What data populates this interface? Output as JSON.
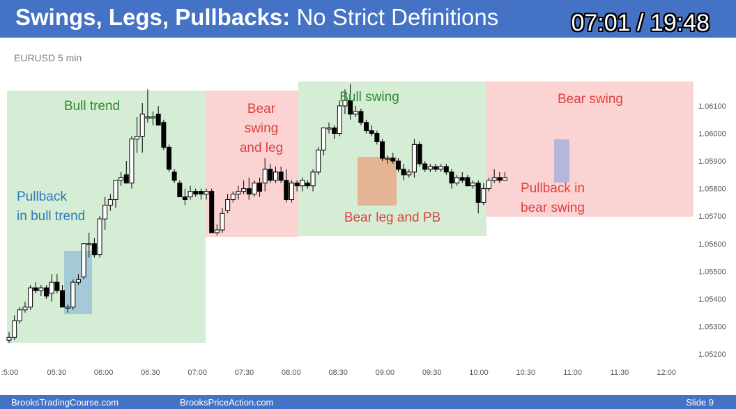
{
  "header": {
    "title_bold": "Swings, Legs, Pullbacks:",
    "title_rest": "No Strict Definitions",
    "timer": "07:01 / 19:48"
  },
  "footer": {
    "left": "BrooksTradingCourse.com",
    "center": "BrooksPriceAction.com",
    "slide": "Slide 9"
  },
  "colors": {
    "header_bg": "#4472c4",
    "bull_zone": "#d4edd4",
    "bear_zone": "#fbd3d3",
    "pullback_bull": "#9cc3d7",
    "pullback_bear": "#a8b0dc",
    "bear_leg_pb": "#e8a98a",
    "bull_text": "#2e8b2e",
    "bear_text": "#e04040",
    "pullback_bull_text": "#2b7bbd"
  },
  "chart_data": {
    "type": "candlestick",
    "title": "EURUSD 5 min",
    "yticks": [
      "1.05200",
      "1.05300",
      "1.05400",
      "1.05500",
      "1.05600",
      "1.05700",
      "1.05800",
      "1.05900",
      "1.06000",
      "1.06100"
    ],
    "xticks": [
      ":5:00",
      "05:30",
      "06:00",
      "06:30",
      "07:00",
      "07:30",
      "08:00",
      "08:30",
      "09:00",
      "09:30",
      "10:00",
      "10:30",
      "11:00",
      "11:30",
      "12:00"
    ],
    "ylim": [
      1.0518,
      1.0622
    ],
    "annotations": [
      {
        "text": "Bull trend",
        "lines": [
          "Bull trend"
        ],
        "style": "bull"
      },
      {
        "text": "Bear swing and leg",
        "lines": [
          "Bear",
          "swing",
          "and leg"
        ],
        "style": "bear"
      },
      {
        "text": "Bull swing",
        "lines": [
          "Bull swing"
        ],
        "style": "bull"
      },
      {
        "text": "Bear swing",
        "lines": [
          "Bear swing"
        ],
        "style": "bear"
      },
      {
        "text": "Pullback in bull trend",
        "lines": [
          "Pullback",
          "in bull trend"
        ],
        "style": "pullback"
      },
      {
        "text": "Bear leg and PB",
        "lines": [
          "Bear leg and PB"
        ],
        "style": "bear"
      },
      {
        "text": "Pullback in bear swing",
        "lines": [
          "Pullback in",
          "bear swing"
        ],
        "style": "bear"
      }
    ],
    "candles": [
      {
        "o": 1.0525,
        "h": 1.0528,
        "l": 1.0524,
        "c": 1.0526
      },
      {
        "o": 1.0526,
        "h": 1.0534,
        "l": 1.0525,
        "c": 1.0532
      },
      {
        "o": 1.0532,
        "h": 1.0537,
        "l": 1.0531,
        "c": 1.0536
      },
      {
        "o": 1.0536,
        "h": 1.0539,
        "l": 1.0535,
        "c": 1.0537
      },
      {
        "o": 1.0537,
        "h": 1.0545,
        "l": 1.0536,
        "c": 1.0544
      },
      {
        "o": 1.0544,
        "h": 1.0546,
        "l": 1.0542,
        "c": 1.0543
      },
      {
        "o": 1.0543,
        "h": 1.0545,
        "l": 1.0541,
        "c": 1.0544
      },
      {
        "o": 1.0544,
        "h": 1.0545,
        "l": 1.054,
        "c": 1.0541
      },
      {
        "o": 1.0542,
        "h": 1.0549,
        "l": 1.0539,
        "c": 1.0546
      },
      {
        "o": 1.0546,
        "h": 1.0549,
        "l": 1.0542,
        "c": 1.0543
      },
      {
        "o": 1.0543,
        "h": 1.0545,
        "l": 1.0537,
        "c": 1.0537
      },
      {
        "o": 1.0537,
        "h": 1.0538,
        "l": 1.0535,
        "c": 1.0537
      },
      {
        "o": 1.0537,
        "h": 1.0547,
        "l": 1.0536,
        "c": 1.0546
      },
      {
        "o": 1.0546,
        "h": 1.0549,
        "l": 1.0545,
        "c": 1.0547
      },
      {
        "o": 1.0548,
        "h": 1.056,
        "l": 1.0547,
        "c": 1.056
      },
      {
        "o": 1.056,
        "h": 1.0564,
        "l": 1.0555,
        "c": 1.056
      },
      {
        "o": 1.056,
        "h": 1.0562,
        "l": 1.0555,
        "c": 1.0556
      },
      {
        "o": 1.0556,
        "h": 1.057,
        "l": 1.0555,
        "c": 1.0569
      },
      {
        "o": 1.0569,
        "h": 1.0577,
        "l": 1.0565,
        "c": 1.0574
      },
      {
        "o": 1.0574,
        "h": 1.0578,
        "l": 1.0572,
        "c": 1.0576
      },
      {
        "o": 1.0576,
        "h": 1.0583,
        "l": 1.0573,
        "c": 1.0583
      },
      {
        "o": 1.0583,
        "h": 1.0586,
        "l": 1.0581,
        "c": 1.0584
      },
      {
        "o": 1.0585,
        "h": 1.059,
        "l": 1.0582,
        "c": 1.0582
      },
      {
        "o": 1.0582,
        "h": 1.0599,
        "l": 1.058,
        "c": 1.0598
      },
      {
        "o": 1.0598,
        "h": 1.0606,
        "l": 1.0593,
        "c": 1.0599
      },
      {
        "o": 1.0599,
        "h": 1.0611,
        "l": 1.0593,
        "c": 1.0607
      },
      {
        "o": 1.0606,
        "h": 1.0616,
        "l": 1.0604,
        "c": 1.0606
      },
      {
        "o": 1.0606,
        "h": 1.0608,
        "l": 1.0603,
        "c": 1.0606
      },
      {
        "o": 1.0607,
        "h": 1.061,
        "l": 1.0603,
        "c": 1.0603
      },
      {
        "o": 1.0604,
        "h": 1.0605,
        "l": 1.0594,
        "c": 1.0595
      },
      {
        "o": 1.0595,
        "h": 1.0596,
        "l": 1.0586,
        "c": 1.0587
      },
      {
        "o": 1.0586,
        "h": 1.0587,
        "l": 1.0582,
        "c": 1.0583
      },
      {
        "o": 1.0582,
        "h": 1.0583,
        "l": 1.0577,
        "c": 1.0577
      },
      {
        "o": 1.0577,
        "h": 1.058,
        "l": 1.0574,
        "c": 1.0576
      },
      {
        "o": 1.0577,
        "h": 1.0581,
        "l": 1.0576,
        "c": 1.0579
      },
      {
        "o": 1.0579,
        "h": 1.058,
        "l": 1.0577,
        "c": 1.0578
      },
      {
        "o": 1.0579,
        "h": 1.058,
        "l": 1.0576,
        "c": 1.0578
      },
      {
        "o": 1.0578,
        "h": 1.058,
        "l": 1.0576,
        "c": 1.0579
      },
      {
        "o": 1.0579,
        "h": 1.058,
        "l": 1.0564,
        "c": 1.0564
      },
      {
        "o": 1.0564,
        "h": 1.0567,
        "l": 1.0563,
        "c": 1.0565
      },
      {
        "o": 1.0565,
        "h": 1.0573,
        "l": 1.0564,
        "c": 1.0571
      },
      {
        "o": 1.0572,
        "h": 1.0578,
        "l": 1.0571,
        "c": 1.0576
      },
      {
        "o": 1.0576,
        "h": 1.0579,
        "l": 1.0575,
        "c": 1.0578
      },
      {
        "o": 1.0578,
        "h": 1.0581,
        "l": 1.0576,
        "c": 1.0579
      },
      {
        "o": 1.0579,
        "h": 1.0583,
        "l": 1.0578,
        "c": 1.058
      },
      {
        "o": 1.058,
        "h": 1.0584,
        "l": 1.0576,
        "c": 1.0578
      },
      {
        "o": 1.0578,
        "h": 1.0583,
        "l": 1.0577,
        "c": 1.0582
      },
      {
        "o": 1.0582,
        "h": 1.0584,
        "l": 1.0577,
        "c": 1.0579
      },
      {
        "o": 1.0582,
        "h": 1.0591,
        "l": 1.0579,
        "c": 1.0587
      },
      {
        "o": 1.0587,
        "h": 1.0589,
        "l": 1.0582,
        "c": 1.0583
      },
      {
        "o": 1.0583,
        "h": 1.0588,
        "l": 1.0582,
        "c": 1.0586
      },
      {
        "o": 1.0586,
        "h": 1.0588,
        "l": 1.0582,
        "c": 1.0583
      },
      {
        "o": 1.0583,
        "h": 1.0587,
        "l": 1.0575,
        "c": 1.0576
      },
      {
        "o": 1.0576,
        "h": 1.0583,
        "l": 1.0575,
        "c": 1.0582
      },
      {
        "o": 1.0582,
        "h": 1.0583,
        "l": 1.0579,
        "c": 1.0581
      },
      {
        "o": 1.0581,
        "h": 1.0584,
        "l": 1.0579,
        "c": 1.0583
      },
      {
        "o": 1.0582,
        "h": 1.0583,
        "l": 1.058,
        "c": 1.0581
      },
      {
        "o": 1.0581,
        "h": 1.0587,
        "l": 1.0579,
        "c": 1.0586
      },
      {
        "o": 1.0586,
        "h": 1.0595,
        "l": 1.0585,
        "c": 1.0594
      },
      {
        "o": 1.0594,
        "h": 1.0602,
        "l": 1.0592,
        "c": 1.0602
      },
      {
        "o": 1.0602,
        "h": 1.0604,
        "l": 1.06,
        "c": 1.0602
      },
      {
        "o": 1.0602,
        "h": 1.0603,
        "l": 1.0598,
        "c": 1.06
      },
      {
        "o": 1.06,
        "h": 1.0612,
        "l": 1.0599,
        "c": 1.061
      },
      {
        "o": 1.061,
        "h": 1.0616,
        "l": 1.0607,
        "c": 1.0612
      },
      {
        "o": 1.0612,
        "h": 1.0618,
        "l": 1.0605,
        "c": 1.0607
      },
      {
        "o": 1.0607,
        "h": 1.061,
        "l": 1.0606,
        "c": 1.0608
      },
      {
        "o": 1.0608,
        "h": 1.0609,
        "l": 1.0603,
        "c": 1.0604
      },
      {
        "o": 1.0604,
        "h": 1.0605,
        "l": 1.06,
        "c": 1.0601
      },
      {
        "o": 1.0601,
        "h": 1.0603,
        "l": 1.0599,
        "c": 1.06
      },
      {
        "o": 1.06,
        "h": 1.0601,
        "l": 1.0596,
        "c": 1.0597
      },
      {
        "o": 1.0597,
        "h": 1.0598,
        "l": 1.059,
        "c": 1.0591
      },
      {
        "o": 1.0591,
        "h": 1.0592,
        "l": 1.0589,
        "c": 1.0591
      },
      {
        "o": 1.0591,
        "h": 1.0593,
        "l": 1.0589,
        "c": 1.059
      },
      {
        "o": 1.059,
        "h": 1.0591,
        "l": 1.0586,
        "c": 1.0587
      },
      {
        "o": 1.0587,
        "h": 1.0589,
        "l": 1.0583,
        "c": 1.0585
      },
      {
        "o": 1.0585,
        "h": 1.0587,
        "l": 1.0584,
        "c": 1.0586
      },
      {
        "o": 1.0586,
        "h": 1.0598,
        "l": 1.0584,
        "c": 1.0596
      },
      {
        "o": 1.0596,
        "h": 1.0597,
        "l": 1.0588,
        "c": 1.0589
      },
      {
        "o": 1.0589,
        "h": 1.059,
        "l": 1.0586,
        "c": 1.0587
      },
      {
        "o": 1.0587,
        "h": 1.0589,
        "l": 1.0586,
        "c": 1.0588
      },
      {
        "o": 1.0588,
        "h": 1.0589,
        "l": 1.0586,
        "c": 1.0587
      },
      {
        "o": 1.0587,
        "h": 1.0589,
        "l": 1.0586,
        "c": 1.0588
      },
      {
        "o": 1.0588,
        "h": 1.0589,
        "l": 1.0585,
        "c": 1.0586
      },
      {
        "o": 1.0586,
        "h": 1.0587,
        "l": 1.058,
        "c": 1.0582
      },
      {
        "o": 1.0582,
        "h": 1.0585,
        "l": 1.0581,
        "c": 1.0584
      },
      {
        "o": 1.0584,
        "h": 1.0586,
        "l": 1.0582,
        "c": 1.0583
      },
      {
        "o": 1.0584,
        "h": 1.0585,
        "l": 1.0581,
        "c": 1.0581
      },
      {
        "o": 1.0581,
        "h": 1.0583,
        "l": 1.058,
        "c": 1.0582
      },
      {
        "o": 1.0582,
        "h": 1.0583,
        "l": 1.0571,
        "c": 1.0575
      },
      {
        "o": 1.0575,
        "h": 1.0582,
        "l": 1.0574,
        "c": 1.058
      },
      {
        "o": 1.058,
        "h": 1.0584,
        "l": 1.0579,
        "c": 1.0583
      },
      {
        "o": 1.0583,
        "h": 1.0587,
        "l": 1.0582,
        "c": 1.0584
      },
      {
        "o": 1.0584,
        "h": 1.0586,
        "l": 1.0582,
        "c": 1.0583
      },
      {
        "o": 1.0583,
        "h": 1.0586,
        "l": 1.0583,
        "c": 1.0584
      }
    ]
  }
}
